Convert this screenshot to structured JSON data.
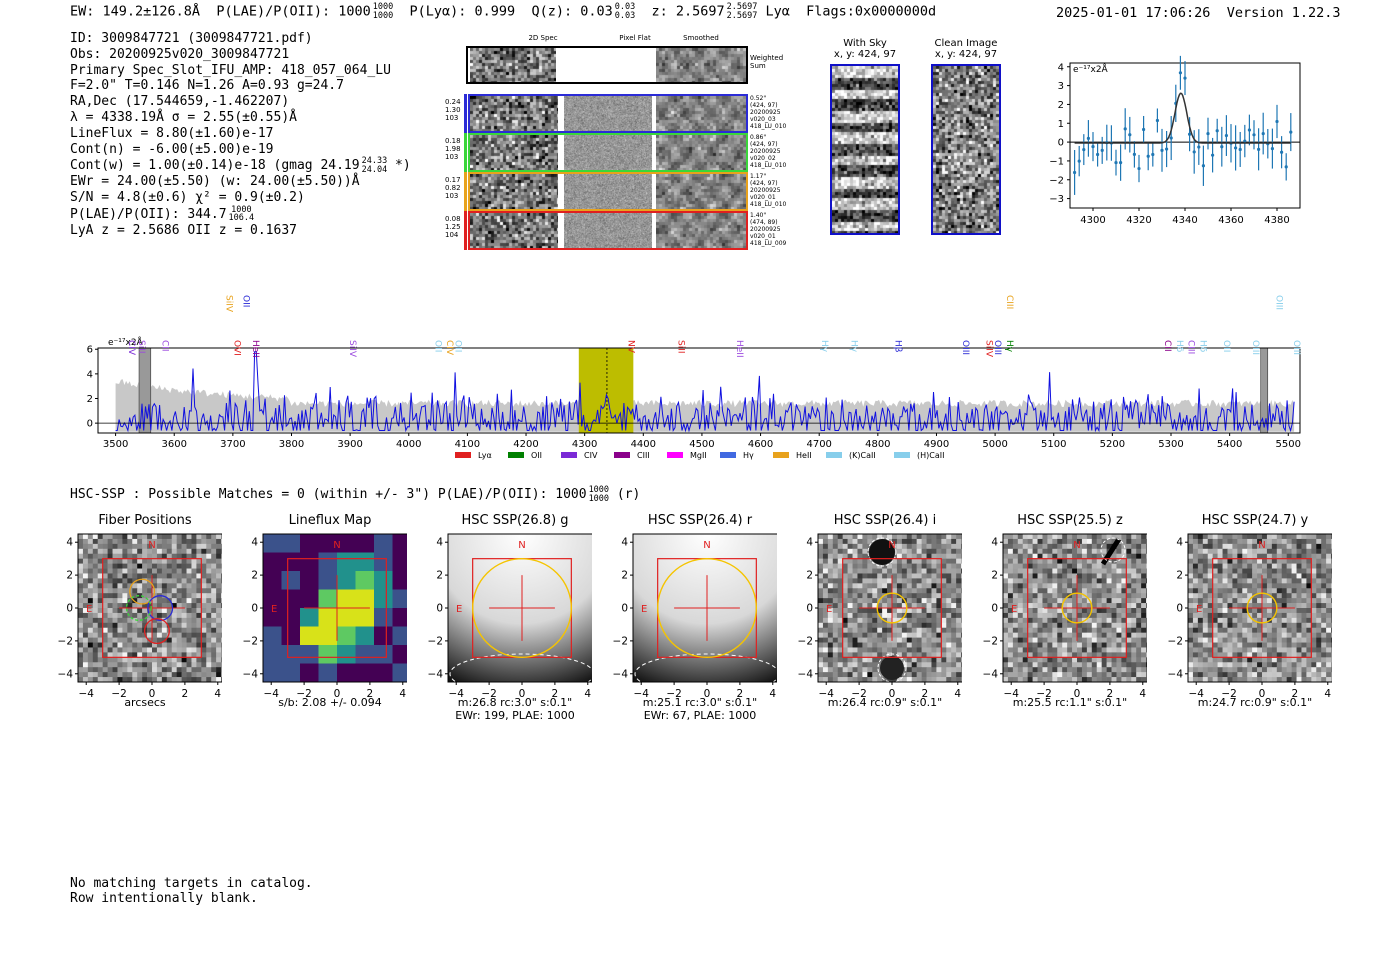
{
  "header": {
    "ew": "EW: 149.2±126.8Å",
    "plae": "P(LAE)/P(OII): 1000",
    "plae_hi": "1000",
    "plae_lo": "1000",
    "plya": "P(Lyα): 0.999",
    "qz": "Q(z): 0.03",
    "qz_hi": "0.03",
    "qz_lo": "0.03",
    "z": "z: 2.5697",
    "z_hi": "2.5697",
    "z_lo": "2.5697",
    "z_line": "Lyα",
    "flags": "Flags:0x0000000d",
    "datetime": "2025-01-01 17:06:26",
    "version": "Version 1.22.3"
  },
  "info": {
    "id": "ID: 3009847721 (3009847721.pdf)",
    "obs": "Obs: 20200925v020_3009847721",
    "primary": "Primary Spec_Slot_IFU_AMP: 418_057_064_LU",
    "params": "F=2.0\"  T=0.146  N=1.26  A=0.93  g=24.7",
    "radec": "RA,Dec (17.544659,-1.462207)",
    "lambda": "λ = 4338.19Å  σ = 2.55(±0.55)Å",
    "lineflux": "LineFlux = 8.80(±1.60)e-17",
    "contn": "Cont(n) = -6.00(±5.00)e-19",
    "contw": "Cont(w) = 1.00(±0.14)e-18 (gmag 24.19",
    "contw_hi": "24.33",
    "contw_lo": "24.04",
    "contw_end": "*)",
    "ewr": "EWr = 24.00(±5.50) (w: 24.00(±5.50))Å",
    "sn": "S/N = 4.8(±0.6)  χ² = 0.9(±0.2)",
    "plae2": "P(LAE)/P(OII): 344.7",
    "plae2_hi": "1000",
    "plae2_lo": "106.4",
    "lyaz": "LyA z = 2.5686  OII z = 0.1637"
  },
  "cutouts": {
    "col_labels": [
      "2D Spec",
      "Pixel Flat",
      "Smoothed"
    ],
    "weighted_sum": "Weighted Sum",
    "rows": [
      {
        "left": [
          "0.24",
          "1.30",
          "103"
        ],
        "right": [
          "0.52\"",
          "(424, 97)",
          "20200925",
          "v020_03",
          "418_LU_010"
        ],
        "color": "#2b2bd6"
      },
      {
        "left": [
          "0.18",
          "1.98",
          "103"
        ],
        "right": [
          "0.86\"",
          "(424, 97)",
          "20200925",
          "v020_02",
          "418_LU_010"
        ],
        "color": "#3ad63a"
      },
      {
        "left": [
          "0.17",
          "0.82",
          "103"
        ],
        "right": [
          "1.17\"",
          "(424, 97)",
          "20200925",
          "v020_01",
          "418_LU_010"
        ],
        "color": "#e8a21c"
      },
      {
        "left": [
          "0.08",
          "1.25",
          "104"
        ],
        "right": [
          "1.40\"",
          "(474, 89)",
          "20200925",
          "v020_01",
          "418_LU_009"
        ],
        "color": "#e02020"
      }
    ],
    "with_sky": "With Sky",
    "with_sky_xy": "x, y: 424, 97",
    "clean": "Clean Image",
    "clean_xy": "x, y: 424, 97"
  },
  "zoom_plot": {
    "units": "e⁻¹⁷x2Å",
    "yticks": [
      "4",
      "3",
      "2",
      "1",
      "0",
      "−1",
      "−2",
      "−3"
    ],
    "xticks": [
      "4300",
      "4320",
      "4340",
      "4360",
      "4380"
    ]
  },
  "spectrum": {
    "units": "e⁻¹⁷x2Å",
    "yticks": [
      "6",
      "4",
      "2",
      "0"
    ],
    "xticks": [
      "3500",
      "3600",
      "3700",
      "3800",
      "3900",
      "4000",
      "4100",
      "4200",
      "4300",
      "4400",
      "4500",
      "4600",
      "4700",
      "4800",
      "4900",
      "5000",
      "5100",
      "5200",
      "5300",
      "5400",
      "5500"
    ],
    "lines_top": [
      {
        "label": "CIV",
        "color": "#7b2ad6"
      },
      {
        "label": "SiII",
        "color": "#9b4adf"
      },
      {
        "label": "CII",
        "color": "#9b4adf"
      },
      {
        "label": "SiIV",
        "color": "#e8a21c"
      },
      {
        "label": "OII",
        "color": "#2b2bd6"
      },
      {
        "label": "OVI",
        "color": "#e02020"
      },
      {
        "label": "HeII",
        "color": "#8b008b"
      },
      {
        "label": "SiIV",
        "color": "#9b4adf"
      },
      {
        "label": "OII",
        "color": "#87ceeb"
      },
      {
        "label": "CIV",
        "color": "#e8a21c"
      },
      {
        "label": "OII",
        "color": "#87ceeb"
      },
      {
        "label": "NV",
        "color": "#e02020"
      },
      {
        "label": "SiII",
        "color": "#e02020"
      },
      {
        "label": "HeII",
        "color": "#9b4adf"
      },
      {
        "label": "Hγ",
        "color": "#87ceeb"
      },
      {
        "label": "Hγ",
        "color": "#87ceeb"
      },
      {
        "label": "Hβ",
        "color": "#2b2bd6"
      },
      {
        "label": "OIII",
        "color": "#2b2bd6"
      },
      {
        "label": "SiIV",
        "color": "#e02020"
      },
      {
        "label": "OIII",
        "color": "#2b2bd6"
      },
      {
        "label": "CIII",
        "color": "#e8a21c"
      },
      {
        "label": "Hγ",
        "color": "#008000"
      },
      {
        "label": "CII",
        "color": "#8b008b"
      },
      {
        "label": "Hδ",
        "color": "#87ceeb"
      },
      {
        "label": "CIII",
        "color": "#9b4adf"
      },
      {
        "label": "Hδ",
        "color": "#87ceeb"
      },
      {
        "label": "OII",
        "color": "#87ceeb"
      },
      {
        "label": "OIII",
        "color": "#87ceeb"
      },
      {
        "label": "OIII",
        "color": "#87ceeb"
      },
      {
        "label": "OIII",
        "color": "#87ceeb"
      }
    ],
    "legend": [
      {
        "label": "Lyα",
        "color": "#e02020"
      },
      {
        "label": "OII",
        "color": "#008000"
      },
      {
        "label": "CIV",
        "color": "#7b2ad6"
      },
      {
        "label": "CIII",
        "color": "#8b008b"
      },
      {
        "label": "MgII",
        "color": "#ff00ff"
      },
      {
        "label": "Hγ",
        "color": "#4169e1"
      },
      {
        "label": "HeII",
        "color": "#e8a21c"
      },
      {
        "label": "(K)CaII",
        "color": "#87ceeb"
      },
      {
        "label": "(H)CaII",
        "color": "#87ceeb"
      }
    ]
  },
  "hsc": {
    "line": "HSC-SSP : Possible Matches = 0 (within +/- 3\")  P(LAE)/P(OII): 1000",
    "frac_hi": "1000",
    "frac_lo": "1000",
    "suffix": "(r)",
    "panels": [
      {
        "title": "Fiber Positions",
        "sub1": "arcsecs",
        "sub2": ""
      },
      {
        "title": "Lineflux Map",
        "sub1": "s/b: 2.08 +/- 0.094",
        "sub2": ""
      },
      {
        "title": "HSC SSP(26.8) g",
        "sub1": "m:26.8 rc:3.0\"  s:0.1\"",
        "sub2": "EWr: 199, PLAE: 1000"
      },
      {
        "title": "HSC SSP(26.4) r",
        "sub1": "m:25.1 rc:3.0\"  s:0.1\"",
        "sub2": "EWr: 67, PLAE: 1000"
      },
      {
        "title": "HSC SSP(26.4) i",
        "sub1": "m:26.4 rc:0.9\"  s:0.1\"",
        "sub2": ""
      },
      {
        "title": "HSC SSP(25.5) z",
        "sub1": "m:25.5 rc:1.1\"  s:0.1\"",
        "sub2": ""
      },
      {
        "title": "HSC SSP(24.7) y",
        "sub1": "m:24.7 rc:0.9\"  s:0.1\"",
        "sub2": ""
      }
    ],
    "yticks": [
      "4",
      "2",
      "0",
      "−2",
      "−4"
    ],
    "xticks": [
      "−4",
      "−2",
      "0",
      "2",
      "4"
    ],
    "north": "N",
    "east": "E"
  },
  "footer": {
    "line1": "No matching targets in catalog.",
    "line2": "Row intentionally blank."
  }
}
